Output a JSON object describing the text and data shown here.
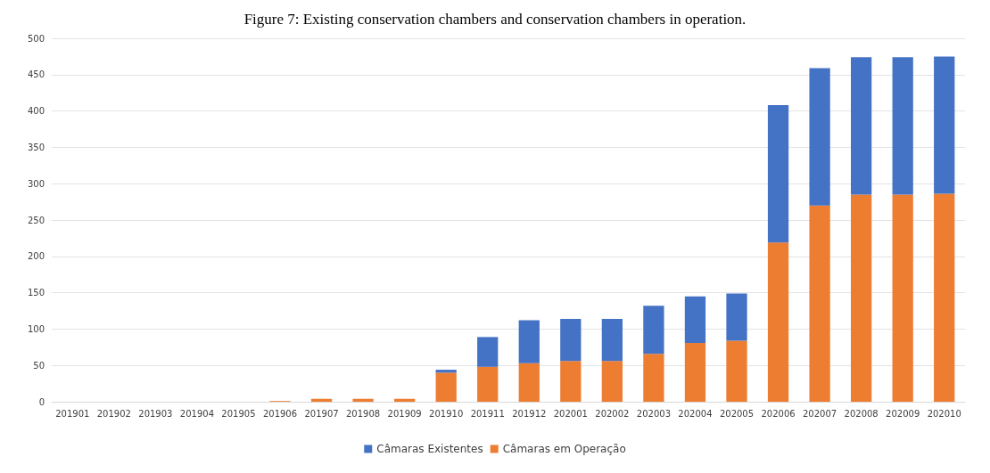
{
  "chart_data": {
    "type": "bar",
    "title": "Figure 7: Existing conservation chambers and conservation chambers in operation.",
    "stacked": true,
    "categories": [
      "201901",
      "201902",
      "201903",
      "201904",
      "201905",
      "201906",
      "201907",
      "201908",
      "201909",
      "201910",
      "201911",
      "201912",
      "202001",
      "202002",
      "202003",
      "202004",
      "202005",
      "202006",
      "202007",
      "202008",
      "202009",
      "202010"
    ],
    "series": [
      {
        "name": "Câmaras em Operação",
        "color": "#ed7d31",
        "values": [
          0,
          0,
          0,
          0,
          0,
          1,
          4,
          4,
          4,
          40,
          48,
          53,
          56,
          56,
          66,
          81,
          84,
          219,
          270,
          285,
          285,
          286
        ]
      },
      {
        "name": "Câmaras Existentes",
        "color": "#4472c4",
        "values": [
          0,
          0,
          0,
          0,
          0,
          0,
          0,
          0,
          0,
          4,
          41,
          59,
          58,
          58,
          66,
          64,
          65,
          189,
          189,
          189,
          189,
          189
        ]
      }
    ],
    "ylim": [
      0,
      500
    ],
    "yticks": [
      0,
      50,
      100,
      150,
      200,
      250,
      300,
      350,
      400,
      450,
      500
    ],
    "grid": "y",
    "legend": "bottom"
  }
}
